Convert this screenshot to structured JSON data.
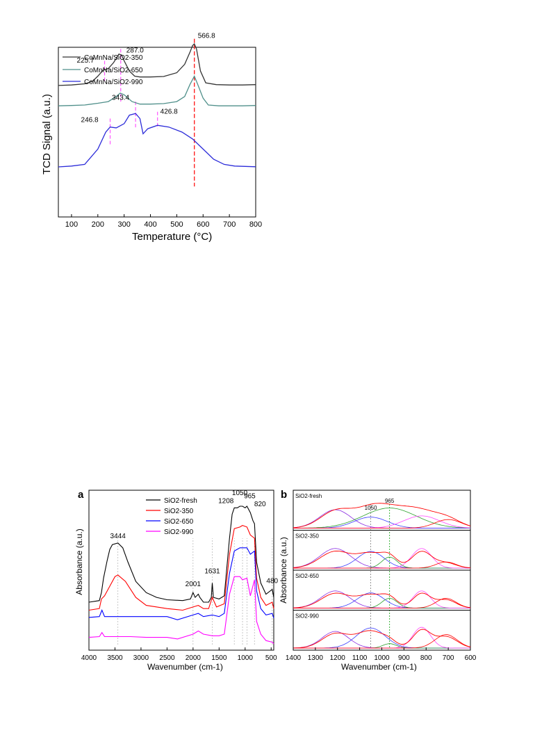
{
  "chart_data": [
    {
      "panel": "tpr",
      "type": "line",
      "xlabel": "Temperature (°C)",
      "ylabel": "TCD Signal (a.u.)",
      "xlim": [
        50,
        800
      ],
      "xticks": [
        100,
        200,
        300,
        400,
        500,
        600,
        700,
        800
      ],
      "legend_position": "top-left",
      "series": [
        {
          "name": "CoMnNa/SiO2-350",
          "color": "#333333",
          "x": [
            50,
            100,
            150,
            180,
            200,
            220,
            240,
            260,
            280,
            290,
            300,
            320,
            340,
            360,
            400,
            450,
            500,
            530,
            550,
            560,
            566.8,
            575,
            590,
            610,
            650,
            700,
            750,
            800
          ],
          "y": [
            0.775,
            0.778,
            0.785,
            0.8,
            0.83,
            0.865,
            0.875,
            0.91,
            0.96,
            0.955,
            0.92,
            0.86,
            0.83,
            0.825,
            0.825,
            0.828,
            0.85,
            0.9,
            0.97,
            1.01,
            1.02,
            0.99,
            0.86,
            0.79,
            0.78,
            0.778,
            0.778,
            0.78
          ]
        },
        {
          "name": "CoMnNa/SiO2-650",
          "color": "#4f8f8a",
          "x": [
            50,
            100,
            150,
            200,
            240,
            270,
            285,
            300,
            330,
            360,
            400,
            450,
            500,
            530,
            550,
            566.8,
            580,
            600,
            620,
            660,
            700,
            750,
            800
          ],
          "y": [
            0.655,
            0.657,
            0.66,
            0.67,
            0.68,
            0.71,
            0.73,
            0.72,
            0.68,
            0.665,
            0.665,
            0.668,
            0.68,
            0.71,
            0.78,
            0.83,
            0.78,
            0.7,
            0.66,
            0.655,
            0.655,
            0.655,
            0.657
          ]
        },
        {
          "name": "CoMnNa/SiO2-990",
          "color": "#2b2bd9",
          "x": [
            50,
            100,
            150,
            200,
            230,
            246.8,
            270,
            300,
            320,
            343.4,
            360,
            372,
            390,
            426.8,
            470,
            520,
            560,
            600,
            640,
            680,
            720,
            760,
            800
          ],
          "y": [
            0.295,
            0.3,
            0.31,
            0.4,
            0.5,
            0.53,
            0.525,
            0.55,
            0.6,
            0.61,
            0.58,
            0.49,
            0.52,
            0.54,
            0.53,
            0.5,
            0.46,
            0.4,
            0.34,
            0.31,
            0.3,
            0.298,
            0.296
          ]
        }
      ],
      "annotations": [
        {
          "text": "225.7",
          "x": 225.7,
          "color": "#2b2bd9",
          "line_color": "#ff55ff"
        },
        {
          "text": "287.0",
          "x": 287.0,
          "color": "#2b2bd9",
          "line_color": "#ff55ff"
        },
        {
          "text": "566.8",
          "x": 566.8,
          "color": "#2b2bd9",
          "line_color": "#ff2222"
        },
        {
          "text": "246.8",
          "x": 246.8,
          "color": "#2b2bd9",
          "line_color": "#ff55ff"
        },
        {
          "text": "343.4",
          "x": 343.4,
          "color": "#2b2bd9",
          "line_color": "#ff55ff"
        },
        {
          "text": "426.8",
          "x": 426.8,
          "color": "#2b2bd9",
          "line_color": "#ff55ff"
        }
      ]
    },
    {
      "panel": "a",
      "panel_label": "a",
      "type": "line",
      "xlabel": "Wavenumber (cm-1)",
      "ylabel": "Absorbance (a.u.)",
      "xlim": [
        4000,
        450
      ],
      "x_reversed": true,
      "xticks": [
        4000,
        3500,
        3000,
        2500,
        2000,
        1500,
        1000,
        500
      ],
      "legend_position": "top-center",
      "series": [
        {
          "name": "SiO2-fresh",
          "color": "#000000",
          "x": [
            4000,
            3800,
            3760,
            3720,
            3650,
            3600,
            3550,
            3444,
            3350,
            3250,
            3100,
            2900,
            2700,
            2500,
            2200,
            2050,
            2001,
            1960,
            1900,
            1870,
            1800,
            1700,
            1650,
            1631,
            1610,
            1500,
            1400,
            1300,
            1250,
            1208,
            1150,
            1100,
            1050,
            1000,
            965,
            900,
            850,
            820,
            780,
            700,
            600,
            480,
            450
          ],
          "y": [
            0.3,
            0.31,
            0.36,
            0.45,
            0.56,
            0.63,
            0.66,
            0.67,
            0.64,
            0.55,
            0.43,
            0.36,
            0.33,
            0.315,
            0.31,
            0.32,
            0.36,
            0.33,
            0.35,
            0.33,
            0.3,
            0.3,
            0.33,
            0.42,
            0.33,
            0.32,
            0.34,
            0.7,
            0.85,
            0.89,
            0.89,
            0.9,
            0.9,
            0.89,
            0.9,
            0.86,
            0.81,
            0.79,
            0.55,
            0.42,
            0.35,
            0.38,
            0.33
          ]
        },
        {
          "name": "SiO2-350",
          "color": "#ff0000",
          "x": [
            4000,
            3800,
            3760,
            3700,
            3600,
            3500,
            3444,
            3300,
            3100,
            2900,
            2500,
            2200,
            2001,
            1900,
            1800,
            1700,
            1631,
            1550,
            1400,
            1300,
            1208,
            1100,
            1050,
            965,
            900,
            820,
            780,
            700,
            600,
            480,
            450
          ],
          "y": [
            0.25,
            0.26,
            0.32,
            0.34,
            0.4,
            0.46,
            0.47,
            0.43,
            0.33,
            0.28,
            0.26,
            0.25,
            0.27,
            0.28,
            0.26,
            0.26,
            0.33,
            0.27,
            0.29,
            0.6,
            0.76,
            0.77,
            0.78,
            0.77,
            0.72,
            0.7,
            0.45,
            0.33,
            0.28,
            0.3,
            0.26
          ]
        },
        {
          "name": "SiO2-650",
          "color": "#0000ff",
          "x": [
            4000,
            3800,
            3750,
            3700,
            3500,
            3444,
            3200,
            2900,
            2500,
            2300,
            2001,
            1900,
            1800,
            1631,
            1500,
            1400,
            1300,
            1208,
            1100,
            1050,
            965,
            900,
            820,
            780,
            700,
            600,
            480,
            450
          ],
          "y": [
            0.205,
            0.21,
            0.25,
            0.21,
            0.21,
            0.21,
            0.21,
            0.21,
            0.21,
            0.19,
            0.22,
            0.23,
            0.21,
            0.22,
            0.21,
            0.23,
            0.48,
            0.62,
            0.64,
            0.64,
            0.64,
            0.6,
            0.62,
            0.37,
            0.26,
            0.22,
            0.23,
            0.2
          ]
        },
        {
          "name": "SiO2-990",
          "color": "#ff00ff",
          "x": [
            4000,
            3800,
            3750,
            3700,
            3500,
            3200,
            2900,
            2500,
            2300,
            2001,
            1900,
            1800,
            1631,
            1500,
            1400,
            1300,
            1208,
            1100,
            1050,
            965,
            900,
            820,
            780,
            700,
            600,
            480,
            450
          ],
          "y": [
            0.08,
            0.085,
            0.11,
            0.085,
            0.085,
            0.085,
            0.08,
            0.08,
            0.07,
            0.1,
            0.12,
            0.1,
            0.09,
            0.09,
            0.1,
            0.35,
            0.46,
            0.46,
            0.44,
            0.45,
            0.34,
            0.44,
            0.18,
            0.1,
            0.06,
            0.05,
            0.04
          ]
        }
      ],
      "peak_labels": [
        {
          "text": "3444",
          "x": 3444
        },
        {
          "text": "2001",
          "x": 2001
        },
        {
          "text": "1631",
          "x": 1631
        },
        {
          "text": "1208",
          "x": 1208
        },
        {
          "text": "1050",
          "x": 1050
        },
        {
          "text": "965",
          "x": 965
        },
        {
          "text": "820",
          "x": 820
        },
        {
          "text": "480",
          "x": 480
        }
      ]
    },
    {
      "panel": "b",
      "panel_label": "b",
      "type": "line",
      "xlabel": "Wavenumber (cm-1)",
      "ylabel": "Absorbance (a.u.)",
      "xlim": [
        1400,
        600
      ],
      "x_reversed": true,
      "xticks": [
        1400,
        1300,
        1200,
        1100,
        1000,
        900,
        800,
        700,
        600
      ],
      "reference_lines": [
        {
          "x": 1050,
          "label": "1050",
          "color": "#888888"
        },
        {
          "x": 965,
          "label": "965",
          "color": "#22aa22"
        }
      ],
      "component_colors": [
        "#8a2be2",
        "#3a3aff",
        "#2ca02c",
        "#ff44ff",
        "#ff0000"
      ],
      "subpanels": [
        {
          "name": "SiO2-fresh",
          "scale": 0.22,
          "components": [
            {
              "center": 1210,
              "amp": 0.75,
              "width": 70
            },
            {
              "center": 1050,
              "amp": 0.45,
              "width": 75
            },
            {
              "center": 965,
              "amp": 0.82,
              "width": 120
            },
            {
              "center": 820,
              "amp": 0.5,
              "width": 80
            },
            {
              "center": 700,
              "amp": 0.35,
              "width": 60
            }
          ]
        },
        {
          "name": "SiO2-350",
          "scale": 0.22,
          "components": [
            {
              "center": 1210,
              "amp": 0.8,
              "width": 70
            },
            {
              "center": 1050,
              "amp": 0.68,
              "width": 60
            },
            {
              "center": 965,
              "amp": 0.45,
              "width": 35
            },
            {
              "center": 820,
              "amp": 0.8,
              "width": 45
            },
            {
              "center": 710,
              "amp": 0.25,
              "width": 45
            }
          ]
        },
        {
          "name": "SiO2-650",
          "scale": 0.22,
          "components": [
            {
              "center": 1210,
              "amp": 0.7,
              "width": 65
            },
            {
              "center": 1050,
              "amp": 0.62,
              "width": 60
            },
            {
              "center": 965,
              "amp": 0.4,
              "width": 35
            },
            {
              "center": 820,
              "amp": 0.7,
              "width": 40
            },
            {
              "center": 710,
              "amp": 0.4,
              "width": 45
            }
          ]
        },
        {
          "name": "SiO2-990",
          "scale": 0.22,
          "components": [
            {
              "center": 1210,
              "amp": 0.68,
              "width": 60
            },
            {
              "center": 1050,
              "amp": 0.82,
              "width": 65
            },
            {
              "center": 965,
              "amp": 0.18,
              "width": 30
            },
            {
              "center": 820,
              "amp": 0.85,
              "width": 40
            },
            {
              "center": 710,
              "amp": 0.55,
              "width": 50
            }
          ]
        }
      ]
    }
  ]
}
